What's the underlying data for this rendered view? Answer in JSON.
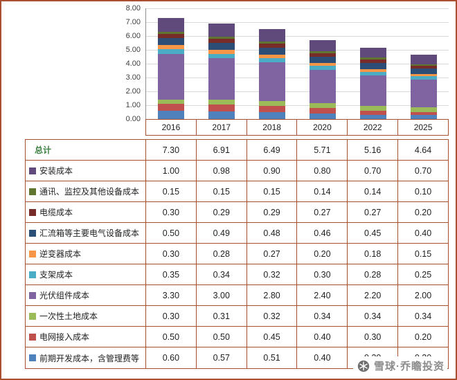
{
  "watermark": {
    "text": "雪球·乔瞻投资"
  },
  "colors": {
    "table_border": "#A8502F",
    "grid_line": "#D9D9D9",
    "total_label": "#3F8144",
    "watermark_text": "#8C8C8C"
  },
  "chart_data": {
    "type": "bar",
    "subtype": "stacked",
    "title": "",
    "xlabel": "",
    "ylabel": "",
    "grid": true,
    "legend_position": "table-rows",
    "ylim": [
      0,
      8
    ],
    "ytick_step": 1,
    "categories": [
      "2016",
      "2017",
      "2018",
      "2020",
      "2022",
      "2025"
    ],
    "totals": {
      "label": "总计",
      "values": [
        7.3,
        6.91,
        6.49,
        5.71,
        5.16,
        4.64
      ]
    },
    "stack_note": "series listed top-of-stack first; bars stack bottom-to-top in reverse order",
    "series": [
      {
        "name": "安装成本",
        "color": "#604A7B",
        "values": [
          1.0,
          0.98,
          0.9,
          0.8,
          0.7,
          0.7
        ]
      },
      {
        "name": "通讯、监控及其他设备成本",
        "color": "#5F7530",
        "values": [
          0.15,
          0.15,
          0.15,
          0.14,
          0.14,
          0.1
        ]
      },
      {
        "name": "电缆成本",
        "color": "#772C2A",
        "values": [
          0.3,
          0.29,
          0.29,
          0.27,
          0.27,
          0.2
        ]
      },
      {
        "name": "汇流箱等主要电气设备成本",
        "color": "#2C4D75",
        "values": [
          0.5,
          0.49,
          0.48,
          0.46,
          0.45,
          0.4
        ]
      },
      {
        "name": "逆变器成本",
        "color": "#F79646",
        "values": [
          0.3,
          0.28,
          0.27,
          0.2,
          0.18,
          0.15
        ]
      },
      {
        "name": "支架成本",
        "color": "#4BACC6",
        "values": [
          0.35,
          0.34,
          0.32,
          0.3,
          0.28,
          0.25
        ]
      },
      {
        "name": "光伏组件成本",
        "color": "#8064A2",
        "values": [
          3.3,
          3.0,
          2.8,
          2.4,
          2.2,
          2.0
        ]
      },
      {
        "name": "一次性土地成本",
        "color": "#9BBB59",
        "values": [
          0.3,
          0.31,
          0.32,
          0.34,
          0.34,
          0.34
        ]
      },
      {
        "name": "电网接入成本",
        "color": "#C0504D",
        "values": [
          0.5,
          0.5,
          0.45,
          0.4,
          0.3,
          0.2
        ]
      },
      {
        "name": "前期开发成本，含管理费等",
        "color": "#4F81BD",
        "values": [
          0.6,
          0.57,
          0.51,
          0.4,
          0.3,
          0.3
        ]
      }
    ]
  }
}
